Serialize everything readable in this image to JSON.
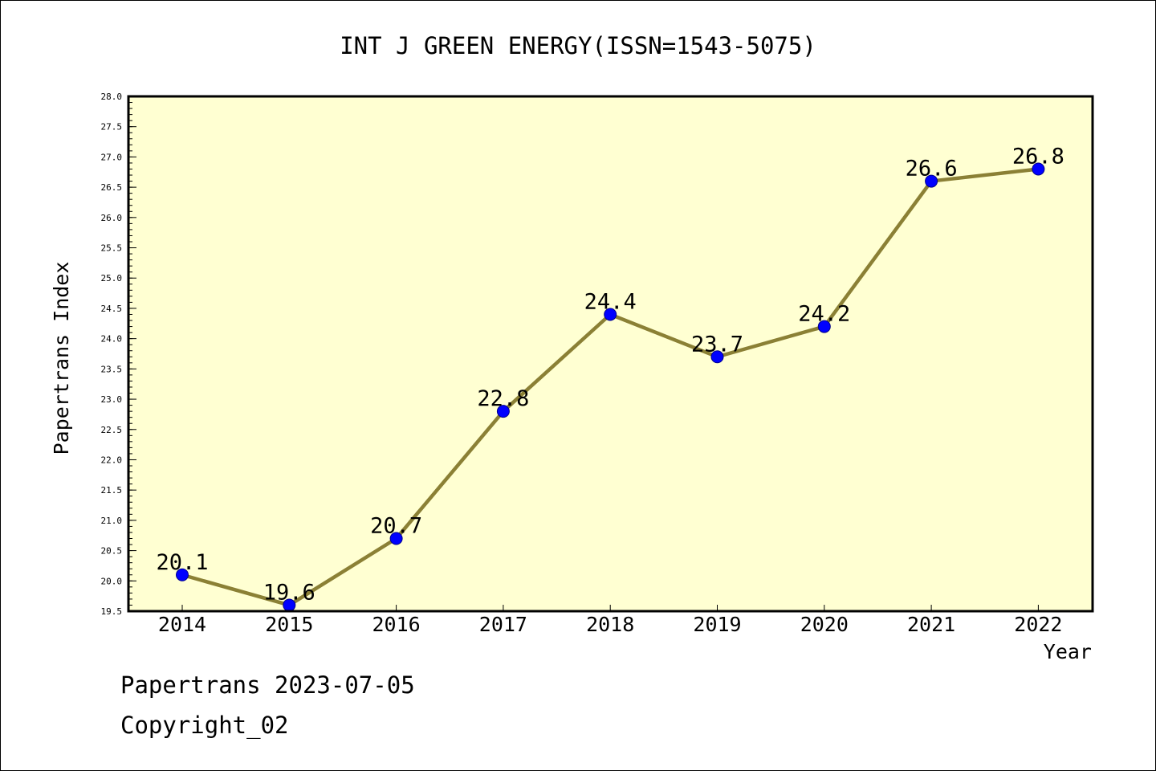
{
  "chart_data": {
    "type": "line",
    "title": "INT J GREEN ENERGY(ISSN=1543-5075)",
    "xlabel": "Year",
    "ylabel": "Papertrans Index",
    "x": [
      "2014",
      "2015",
      "2016",
      "2017",
      "2018",
      "2019",
      "2020",
      "2021",
      "2022"
    ],
    "values": [
      20.1,
      19.6,
      20.7,
      22.8,
      24.4,
      23.7,
      24.2,
      26.6,
      26.8
    ],
    "data_labels": [
      "20.1",
      "19.6",
      "20.7",
      "22.8",
      "24.4",
      "23.7",
      "24.2",
      "26.6",
      "26.8"
    ],
    "ylim": [
      19.5,
      28.0
    ],
    "y_ticks": [
      "19.5",
      "20.0",
      "20.5",
      "21.0",
      "21.5",
      "22.0",
      "22.5",
      "23.0",
      "23.5",
      "24.0",
      "24.5",
      "25.0",
      "25.5",
      "26.0",
      "26.5",
      "27.0",
      "27.5",
      "28.0"
    ],
    "grid": false,
    "plot_background": "#ffffd2",
    "line_color": "#8b8035",
    "marker_color": "#0000ff"
  },
  "footer": {
    "line1": "Papertrans 2023-07-05",
    "line2": "Copyright_02"
  }
}
